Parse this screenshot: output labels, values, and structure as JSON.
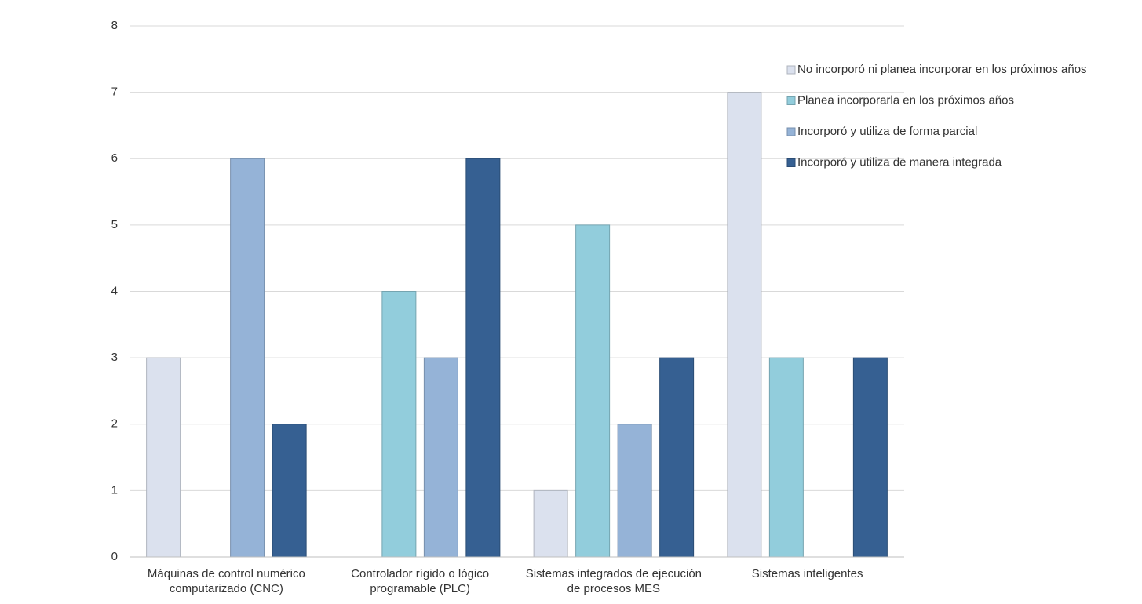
{
  "chart_data": {
    "type": "bar",
    "categories": [
      "Máquinas de control numérico computarizado (CNC)",
      "Controlador rígido o lógico programable (PLC)",
      "Sistemas integrados de ejecución de procesos MES",
      "Sistemas inteligentes"
    ],
    "series": [
      {
        "name": "No incorporó ni planea incorporar en los próximos años",
        "color": "#dbe1ee",
        "values": [
          3,
          0,
          1,
          7
        ]
      },
      {
        "name": "Planea incorporarla en los próximos años",
        "color": "#92cddc",
        "values": [
          0,
          4,
          5,
          3
        ]
      },
      {
        "name": "Incorporó y utiliza de forma parcial",
        "color": "#95b3d7",
        "values": [
          6,
          3,
          2,
          0
        ]
      },
      {
        "name": "Incorporó y utiliza de manera integrada",
        "color": "#366092",
        "values": [
          2,
          6,
          3,
          3
        ]
      }
    ],
    "ylim": [
      0,
      8
    ],
    "yticks": [
      0,
      1,
      2,
      3,
      4,
      5,
      6,
      7,
      8
    ],
    "grid": true,
    "legend": "right"
  }
}
